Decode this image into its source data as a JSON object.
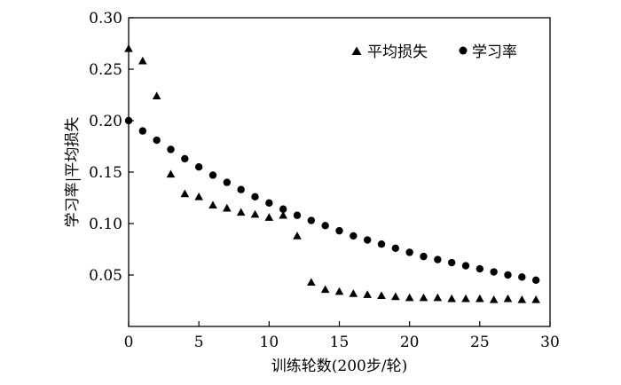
{
  "chart_data": {
    "type": "scatter",
    "xlabel": "训练轮数(200步/轮)",
    "ylabel": "学习率|平均损失",
    "xlim": [
      0,
      30
    ],
    "ylim": [
      0,
      0.3
    ],
    "xticks": [
      "0",
      "5",
      "10",
      "15",
      "20",
      "25",
      "30"
    ],
    "yticks": [
      "0.05",
      "0.10",
      "0.15",
      "0.20",
      "0.25",
      "0.30"
    ],
    "grid": false,
    "legend_position": "top-right",
    "series": [
      {
        "name": "平均损失",
        "marker": "triangle",
        "x": [
          0,
          1,
          2,
          3,
          4,
          5,
          6,
          7,
          8,
          9,
          10,
          11,
          12,
          13,
          14,
          15,
          16,
          17,
          18,
          19,
          20,
          21,
          22,
          23,
          24,
          25,
          26,
          27,
          28,
          29
        ],
        "values": [
          0.27,
          0.258,
          0.224,
          0.148,
          0.129,
          0.126,
          0.118,
          0.115,
          0.111,
          0.109,
          0.106,
          0.108,
          0.088,
          0.043,
          0.036,
          0.034,
          0.032,
          0.031,
          0.03,
          0.029,
          0.028,
          0.028,
          0.028,
          0.027,
          0.027,
          0.027,
          0.026,
          0.027,
          0.026,
          0.026
        ]
      },
      {
        "name": "学习率",
        "marker": "circle",
        "x": [
          0,
          1,
          2,
          3,
          4,
          5,
          6,
          7,
          8,
          9,
          10,
          11,
          12,
          13,
          14,
          15,
          16,
          17,
          18,
          19,
          20,
          21,
          22,
          23,
          24,
          25,
          26,
          27,
          28,
          29
        ],
        "values": [
          0.2,
          0.19,
          0.181,
          0.172,
          0.163,
          0.155,
          0.147,
          0.14,
          0.133,
          0.126,
          0.12,
          0.114,
          0.108,
          0.103,
          0.098,
          0.093,
          0.088,
          0.084,
          0.08,
          0.076,
          0.072,
          0.068,
          0.065,
          0.062,
          0.059,
          0.056,
          0.053,
          0.05,
          0.048,
          0.045
        ]
      }
    ]
  }
}
